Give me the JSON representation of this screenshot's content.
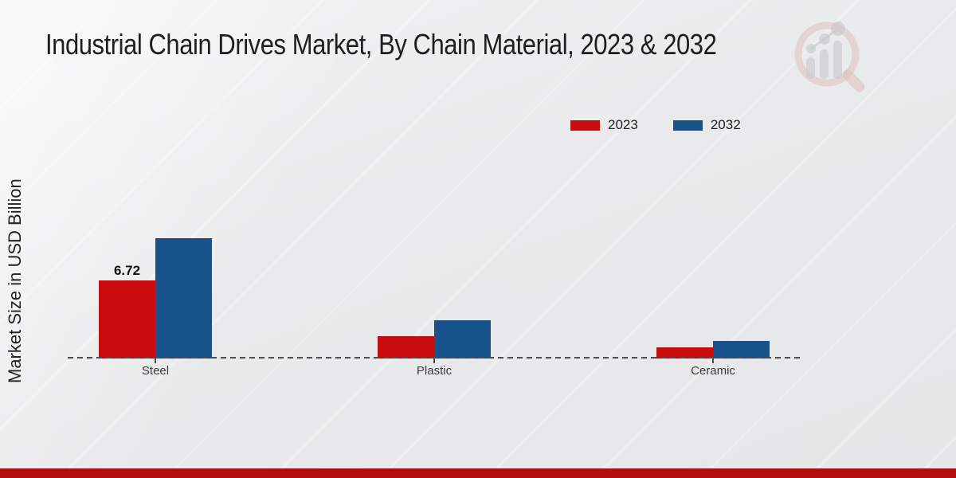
{
  "page": {
    "title": "Industrial Chain Drives Market, By Chain Material, 2023 & 2032"
  },
  "chart": {
    "ylabel": "Market Size in USD Billion",
    "value_label": "6.72"
  },
  "legend": {
    "items": [
      {
        "label": "2023",
        "color": "#c70b0e"
      },
      {
        "label": "2032",
        "color": "#17528b"
      }
    ]
  },
  "chart_data": {
    "type": "bar",
    "title": "Industrial Chain Drives Market, By Chain Material, 2023 & 2032",
    "categories": [
      "Steel",
      "Plastic",
      "Ceramic"
    ],
    "series": [
      {
        "name": "2023",
        "color": "#c70b0e",
        "values": [
          6.72,
          1.92,
          0.96
        ]
      },
      {
        "name": "2032",
        "color": "#17528b",
        "values": [
          10.35,
          3.29,
          1.51
        ]
      }
    ],
    "xlabel": "",
    "ylabel": "Market Size in USD Billion",
    "ylim": [
      0,
      11
    ],
    "grid": false,
    "axis_style": "dashed-zero-line",
    "legend_position": "top-right",
    "annotations": [
      {
        "series": "2023",
        "category": "Steel",
        "text": "6.72"
      }
    ]
  },
  "branding": {
    "logo_name": "magnifier-bar-chart-watermark",
    "footer_bar_color": "#b30d0d"
  }
}
